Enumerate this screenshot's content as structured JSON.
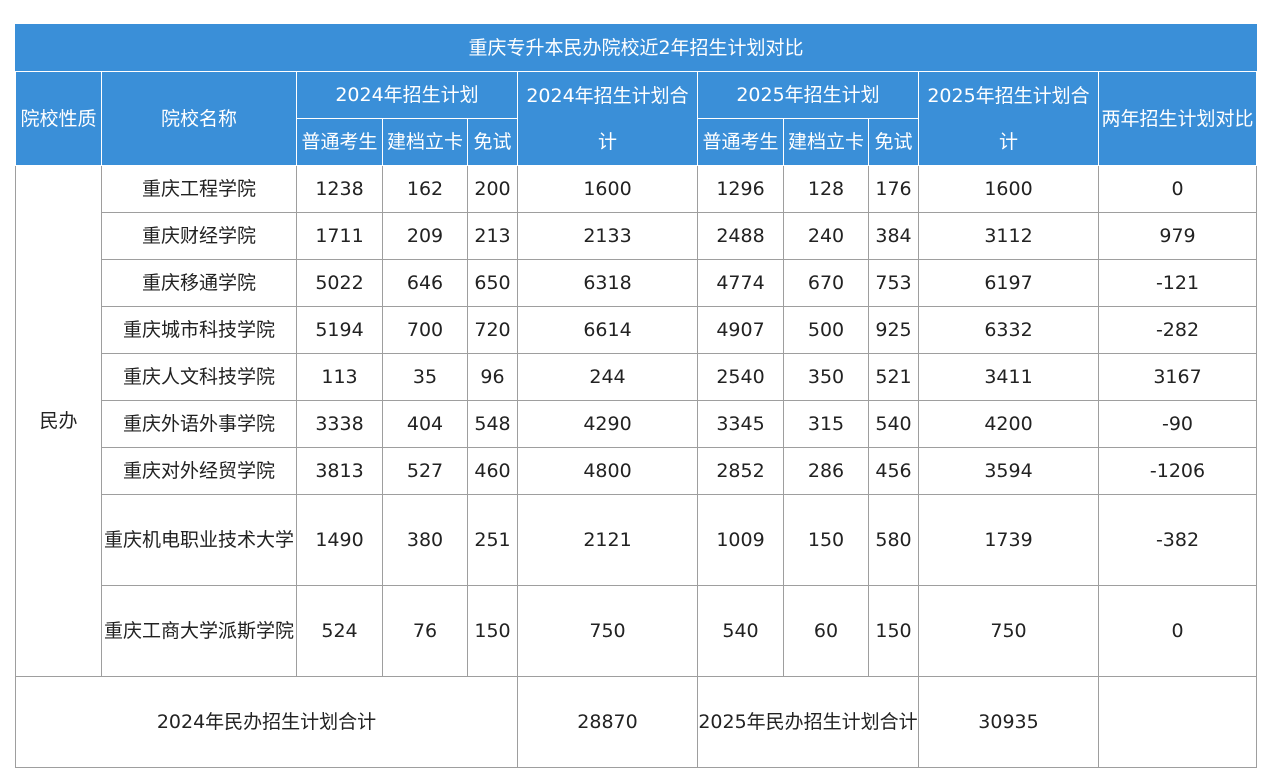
{
  "title": "重庆专升本民办院校近2年招生计划对比",
  "headers": {
    "nature": "院校性质",
    "name": "院校名称",
    "plan2024": "2024年招生计划",
    "total2024": "2024年招生计划合计",
    "plan2025": "2025年招生计划",
    "total2025": "2025年招生计划合计",
    "compare": "两年招生计划对比",
    "sub": {
      "regular": "普通考生",
      "card": "建档立卡",
      "exempt": "免试"
    }
  },
  "nature_value": "民办",
  "rows": [
    {
      "name": "重庆工程学院",
      "r24": "1238",
      "c24": "162",
      "e24": "200",
      "t24": "1600",
      "r25": "1296",
      "c25": "128",
      "e25": "176",
      "t25": "1600",
      "diff": "0"
    },
    {
      "name": "重庆财经学院",
      "r24": "1711",
      "c24": "209",
      "e24": "213",
      "t24": "2133",
      "r25": "2488",
      "c25": "240",
      "e25": "384",
      "t25": "3112",
      "diff": "979"
    },
    {
      "name": "重庆移通学院",
      "r24": "5022",
      "c24": "646",
      "e24": "650",
      "t24": "6318",
      "r25": "4774",
      "c25": "670",
      "e25": "753",
      "t25": "6197",
      "diff": "-121"
    },
    {
      "name": "重庆城市科技学院",
      "r24": "5194",
      "c24": "700",
      "e24": "720",
      "t24": "6614",
      "r25": "4907",
      "c25": "500",
      "e25": "925",
      "t25": "6332",
      "diff": "-282"
    },
    {
      "name": "重庆人文科技学院",
      "r24": "113",
      "c24": "35",
      "e24": "96",
      "t24": "244",
      "r25": "2540",
      "c25": "350",
      "e25": "521",
      "t25": "3411",
      "diff": "3167"
    },
    {
      "name": "重庆外语外事学院",
      "r24": "3338",
      "c24": "404",
      "e24": "548",
      "t24": "4290",
      "r25": "3345",
      "c25": "315",
      "e25": "540",
      "t25": "4200",
      "diff": "-90"
    },
    {
      "name": "重庆对外经贸学院",
      "r24": "3813",
      "c24": "527",
      "e24": "460",
      "t24": "4800",
      "r25": "2852",
      "c25": "286",
      "e25": "456",
      "t25": "3594",
      "diff": "-1206"
    },
    {
      "name": "重庆机电职业技术大学",
      "r24": "1490",
      "c24": "380",
      "e24": "251",
      "t24": "2121",
      "r25": "1009",
      "c25": "150",
      "e25": "580",
      "t25": "1739",
      "diff": "-382"
    },
    {
      "name": "重庆工商大学派斯学院",
      "r24": "524",
      "c24": "76",
      "e24": "150",
      "t24": "750",
      "r25": "540",
      "c25": "60",
      "e25": "150",
      "t25": "750",
      "diff": "0"
    }
  ],
  "footer": {
    "label2024": "2024年民办招生计划合计",
    "total2024": "28870",
    "label2025": "2025年民办招生计划合计",
    "total2025": "30935",
    "compare": ""
  }
}
